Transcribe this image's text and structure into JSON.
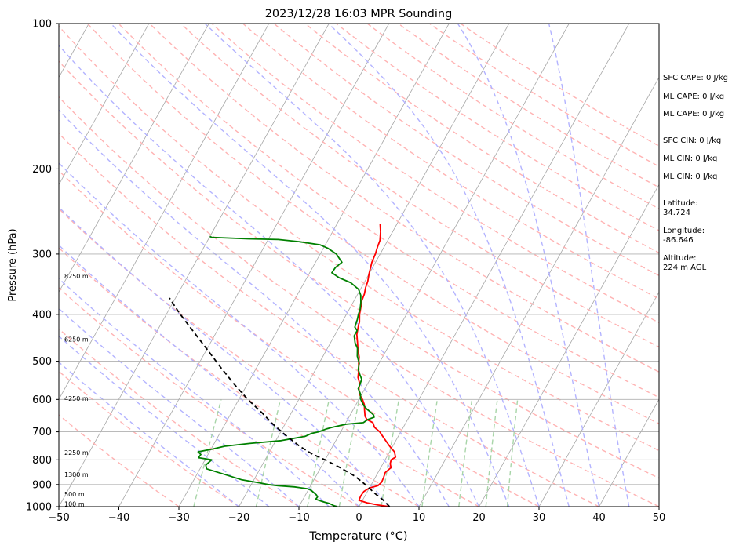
{
  "chart_data": {
    "type": "line",
    "title": "2023/12/28 16:03 MPR Sounding",
    "xlabel": "Temperature (°C)",
    "ylabel": "Pressure (hPa)",
    "xlim": [
      -50,
      50
    ],
    "ylim": [
      1000,
      100
    ],
    "y_scale": "log",
    "x_ticks": [
      "−50",
      "−40",
      "−30",
      "−20",
      "−10",
      "0",
      "10",
      "20",
      "30",
      "40",
      "50"
    ],
    "y_ticks": [
      "100",
      "200",
      "300",
      "400",
      "500",
      "600",
      "700",
      "800",
      "900",
      "1000"
    ],
    "grid": true,
    "series": [
      {
        "kind": "temperature",
        "color": "#ff0000",
        "points": [
          [
            5.1,
            1000
          ],
          [
            3,
            992
          ],
          [
            1,
            982
          ],
          [
            -0.6,
            970
          ],
          [
            -0.7,
            950
          ],
          [
            -0.6,
            930
          ],
          [
            0,
            915
          ],
          [
            1.2,
            905
          ],
          [
            1.5,
            890
          ],
          [
            1.4,
            870
          ],
          [
            1.2,
            850
          ],
          [
            1.7,
            830
          ],
          [
            1.2,
            815
          ],
          [
            1,
            800
          ],
          [
            1.5,
            790
          ],
          [
            0.8,
            770
          ],
          [
            -0.5,
            750
          ],
          [
            -2.3,
            720
          ],
          [
            -3.5,
            700
          ],
          [
            -4.8,
            685
          ],
          [
            -5.5,
            670
          ],
          [
            -6.8,
            660
          ],
          [
            -7.4,
            650
          ],
          [
            -8.1,
            630
          ],
          [
            -8.6,
            615
          ],
          [
            -9.4,
            600
          ],
          [
            -10.4,
            585
          ],
          [
            -11,
            570
          ],
          [
            -11.4,
            555
          ],
          [
            -12.2,
            540
          ],
          [
            -12.8,
            520
          ],
          [
            -13.4,
            505
          ],
          [
            -13.9,
            490
          ],
          [
            -14.7,
            475
          ],
          [
            -15.5,
            458
          ],
          [
            -16.4,
            440
          ],
          [
            -17,
            420
          ],
          [
            -17.1,
            415
          ],
          [
            -17.8,
            400
          ],
          [
            -18.2,
            388
          ],
          [
            -18.7,
            375
          ],
          [
            -18.9,
            363
          ],
          [
            -19.3,
            352
          ],
          [
            -19.5,
            342
          ],
          [
            -20,
            330
          ],
          [
            -20.6,
            312
          ],
          [
            -20.8,
            300
          ],
          [
            -21.1,
            290
          ],
          [
            -21.3,
            281
          ],
          [
            -22,
            270
          ],
          [
            -22.8,
            260
          ]
        ]
      },
      {
        "kind": "dewpoint",
        "color": "#008000",
        "points": [
          [
            -3.6,
            1000
          ],
          [
            -4.3,
            995
          ],
          [
            -5.2,
            985
          ],
          [
            -6.7,
            975
          ],
          [
            -7.9,
            965
          ],
          [
            -7.8,
            955
          ],
          [
            -8.2,
            945
          ],
          [
            -9.5,
            925
          ],
          [
            -10.3,
            918
          ],
          [
            -12.6,
            910
          ],
          [
            -15.4,
            905
          ],
          [
            -17.2,
            900
          ],
          [
            -19,
            892
          ],
          [
            -22,
            880
          ],
          [
            -25,
            860
          ],
          [
            -28.9,
            835
          ],
          [
            -29.4,
            820
          ],
          [
            -28.9,
            800
          ],
          [
            -31.3,
            792
          ],
          [
            -31.2,
            780
          ],
          [
            -31.9,
            770
          ],
          [
            -29.8,
            760
          ],
          [
            -28,
            750
          ],
          [
            -24.1,
            740
          ],
          [
            -19.1,
            730
          ],
          [
            -15.5,
            715
          ],
          [
            -14.7,
            705
          ],
          [
            -13.7,
            700
          ],
          [
            -12.6,
            690
          ],
          [
            -11.8,
            685
          ],
          [
            -9.8,
            675
          ],
          [
            -7.1,
            670
          ],
          [
            -6.6,
            660
          ],
          [
            -5.8,
            653
          ],
          [
            -6.1,
            646
          ],
          [
            -6.9,
            637
          ],
          [
            -7.8,
            628
          ],
          [
            -8.6,
            618
          ],
          [
            -9.2,
            608
          ],
          [
            -9.8,
            598
          ],
          [
            -10.2,
            585
          ],
          [
            -11.1,
            570
          ],
          [
            -11.2,
            560
          ],
          [
            -11.4,
            545
          ],
          [
            -12.2,
            532
          ],
          [
            -12.9,
            520
          ],
          [
            -13.3,
            505
          ],
          [
            -14.3,
            488
          ],
          [
            -15,
            470
          ],
          [
            -15.9,
            458
          ],
          [
            -16.7,
            443
          ],
          [
            -16.7,
            432
          ],
          [
            -17.4,
            425
          ],
          [
            -17.7,
            410
          ],
          [
            -18,
            400
          ],
          [
            -18.2,
            390
          ],
          [
            -18.7,
            378
          ],
          [
            -19.4,
            365
          ],
          [
            -20.3,
            355
          ],
          [
            -22.2,
            344
          ],
          [
            -24.6,
            336
          ],
          [
            -26.3,
            328
          ],
          [
            -26.2,
            320
          ],
          [
            -25.6,
            312
          ],
          [
            -26.3,
            307
          ],
          [
            -27.3,
            300
          ],
          [
            -29.2,
            292
          ],
          [
            -30.9,
            287
          ],
          [
            -34.5,
            283
          ],
          [
            -38.3,
            280
          ],
          [
            -43.4,
            279
          ],
          [
            -49.6,
            277
          ],
          [
            -50,
            276
          ]
        ]
      },
      {
        "kind": "parcel",
        "color": "#000000",
        "dashed": true,
        "points": [
          [
            5.1,
            1000
          ],
          [
            3.5,
            970
          ],
          [
            1.5,
            940
          ],
          [
            -1,
            900
          ],
          [
            -3.5,
            865
          ],
          [
            -6.5,
            833
          ],
          [
            -10,
            800
          ],
          [
            -12.5,
            780
          ],
          [
            -15.5,
            750
          ],
          [
            -19,
            710
          ],
          [
            -22,
            675
          ],
          [
            -25,
            638
          ],
          [
            -28.5,
            600
          ],
          [
            -32,
            560
          ],
          [
            -36,
            515
          ],
          [
            -40,
            472
          ],
          [
            -44,
            433
          ],
          [
            -48,
            397
          ],
          [
            -51,
            370
          ]
        ]
      }
    ],
    "height_labels": [
      {
        "text": "100 m",
        "p": 988
      },
      {
        "text": "500 m",
        "p": 944
      },
      {
        "text": "1300 m",
        "p": 860
      },
      {
        "text": "2250 m",
        "p": 774
      },
      {
        "text": "4250 m",
        "p": 598
      },
      {
        "text": "6250 m",
        "p": 451
      },
      {
        "text": "8250 m",
        "p": 334
      }
    ],
    "annotations": [
      "SFC CAPE: 0 J/kg",
      "ML CAPE: 0 J/kg",
      "ML CAPE: 0 J/kg",
      "SFC CIN: 0 J/kg",
      "ML CIN: 0 J/kg",
      "ML CIN: 0 J/kg",
      "Latitude:",
      "34.724",
      "Longitude:",
      "-86.646",
      "Altitude:",
      "224 m AGL"
    ],
    "colors": {
      "isotherm": "#a6a6a6",
      "dry_adiabat": "#ffb3b3",
      "moist_adiabat": "#b3b3ff",
      "mixing_ratio": "#a8d5a8"
    }
  }
}
